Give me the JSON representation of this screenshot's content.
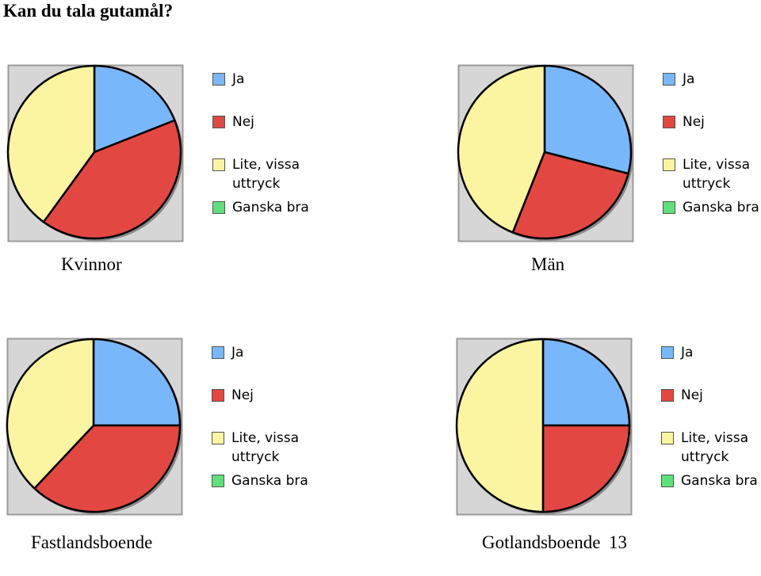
{
  "page": {
    "title": "Kan du tala gutamål?",
    "page_number": "13"
  },
  "colors": {
    "Ja": "#78b8fa",
    "Nej": "#e34742",
    "Lite, vissa uttryck": "#fbf5a1",
    "Ganska bra": "#5ee07a",
    "panel_bg": "#d6d6d6",
    "panel_border": "#9a9a9a"
  },
  "legend": [
    "Ja",
    "Nej",
    "Lite, vissa uttryck",
    "Ganska bra"
  ],
  "chart_data": [
    {
      "type": "pie",
      "title": "Kvinnor",
      "categories": [
        "Ja",
        "Nej",
        "Lite, vissa uttryck",
        "Ganska bra"
      ],
      "values": [
        19,
        41,
        40,
        0
      ],
      "legend_position": "right"
    },
    {
      "type": "pie",
      "title": "Män",
      "categories": [
        "Ja",
        "Nej",
        "Lite, vissa uttryck",
        "Ganska bra"
      ],
      "values": [
        29,
        27,
        44,
        0
      ],
      "legend_position": "right"
    },
    {
      "type": "pie",
      "title": "Fastlandsboende",
      "categories": [
        "Ja",
        "Nej",
        "Lite, vissa uttryck",
        "Ganska bra"
      ],
      "values": [
        25,
        37,
        38,
        0
      ],
      "legend_position": "right"
    },
    {
      "type": "pie",
      "title": "Gotlandsboende",
      "categories": [
        "Ja",
        "Nej",
        "Lite, vissa uttryck",
        "Ganska bra"
      ],
      "values": [
        25,
        25,
        50,
        0
      ],
      "legend_position": "right"
    }
  ]
}
